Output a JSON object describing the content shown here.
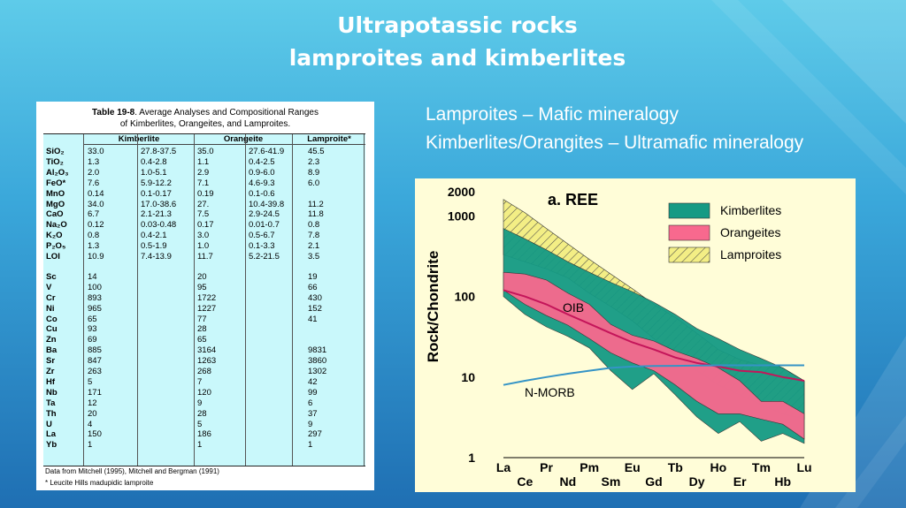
{
  "slide": {
    "title_line1": "Ultrapotassic rocks",
    "title_line2": "lamproites and kimberlites",
    "bullet1": "Lamproites – Mafic mineralogy",
    "bullet2": "Kimberlites/Orangites – Ultramafic mineralogy"
  },
  "table": {
    "caption_bold": "Table 19-8",
    "caption_rest": ". Average Analyses and Compositional Ranges",
    "caption_line2": "of Kimberlites, Orangeites, and Lamproites.",
    "groups": [
      "Kimberlite",
      "Orangeite",
      "Lamproite*"
    ],
    "rows": [
      {
        "label": "SiO₂",
        "v": [
          "33.0",
          "27.8-37.5",
          "35.0",
          "27.6-41.9",
          "45.5"
        ]
      },
      {
        "label": "TiO₂",
        "v": [
          "1.3",
          "0.4-2.8",
          "1.1",
          "0.4-2.5",
          "2.3"
        ]
      },
      {
        "label": "Al₂O₃",
        "v": [
          "2.0",
          "1.0-5.1",
          "2.9",
          "0.9-6.0",
          "8.9"
        ]
      },
      {
        "label": "FeO*",
        "v": [
          "7.6",
          "5.9-12.2",
          "7.1",
          "4.6-9.3",
          "6.0"
        ]
      },
      {
        "label": "MnO",
        "v": [
          "0.14",
          "0.1-0.17",
          "0.19",
          "0.1-0.6",
          ""
        ]
      },
      {
        "label": "MgO",
        "v": [
          "34.0",
          "17.0-38.6",
          "27.",
          "10.4-39.8",
          "11.2"
        ]
      },
      {
        "label": "CaO",
        "v": [
          "6.7",
          "2.1-21.3",
          "7.5",
          "2.9-24.5",
          "11.8"
        ]
      },
      {
        "label": "Na₂O",
        "v": [
          "0.12",
          "0.03-0.48",
          "0.17",
          "0.01-0.7",
          "0.8"
        ]
      },
      {
        "label": "K₂O",
        "v": [
          "0.8",
          "0.4-2.1",
          "3.0",
          "0.5-6.7",
          "7.8"
        ]
      },
      {
        "label": "P₂O₅",
        "v": [
          "1.3",
          "0.5-1.9",
          "1.0",
          "0.1-3.3",
          "2.1"
        ]
      },
      {
        "label": "LOI",
        "v": [
          "10.9",
          "7.4-13.9",
          "11.7",
          "5.2-21.5",
          "3.5"
        ]
      },
      {
        "label": "Sc",
        "v": [
          "14",
          "",
          "20",
          "",
          "19"
        ]
      },
      {
        "label": "V",
        "v": [
          "100",
          "",
          "95",
          "",
          "66"
        ]
      },
      {
        "label": "Cr",
        "v": [
          "893",
          "",
          "1722",
          "",
          "430"
        ]
      },
      {
        "label": "Ni",
        "v": [
          "965",
          "",
          "1227",
          "",
          "152"
        ]
      },
      {
        "label": "Co",
        "v": [
          "65",
          "",
          "77",
          "",
          "41"
        ]
      },
      {
        "label": "Cu",
        "v": [
          "93",
          "",
          "28",
          "",
          ""
        ]
      },
      {
        "label": "Zn",
        "v": [
          "69",
          "",
          "65",
          "",
          ""
        ]
      },
      {
        "label": "Ba",
        "v": [
          "885",
          "",
          "3164",
          "",
          "9831"
        ]
      },
      {
        "label": "Sr",
        "v": [
          "847",
          "",
          "1263",
          "",
          "3860"
        ]
      },
      {
        "label": "Zr",
        "v": [
          "263",
          "",
          "268",
          "",
          "1302"
        ]
      },
      {
        "label": "Hf",
        "v": [
          "5",
          "",
          "7",
          "",
          "42"
        ]
      },
      {
        "label": "Nb",
        "v": [
          "171",
          "",
          "120",
          "",
          "99"
        ]
      },
      {
        "label": "Ta",
        "v": [
          "12",
          "",
          "9",
          "",
          "6"
        ]
      },
      {
        "label": "Th",
        "v": [
          "20",
          "",
          "28",
          "",
          "37"
        ]
      },
      {
        "label": "U",
        "v": [
          "4",
          "",
          "5",
          "",
          "9"
        ]
      },
      {
        "label": "La",
        "v": [
          "150",
          "",
          "186",
          "",
          "297"
        ]
      },
      {
        "label": "Yb",
        "v": [
          "1",
          "",
          "1",
          "",
          "1"
        ]
      }
    ],
    "note1": "Data from Mitchell (1995), Mitchell and Bergman (1991)",
    "note2": "* Leucite Hills madupidic lamproite"
  },
  "chart_data": {
    "type": "line",
    "title": "a. REE",
    "ylabel": "Rock/Chondrite",
    "yscale": "log",
    "ylim": [
      1,
      2000
    ],
    "ytick_labels": [
      "2000",
      "1000",
      "100",
      "10",
      "1"
    ],
    "x_top_row": [
      "La",
      "Pr",
      "Pm",
      "Eu",
      "Tb",
      "Ho",
      "Tm",
      "Lu"
    ],
    "x_bottom_row": [
      "Ce",
      "Nd",
      "Sm",
      "Gd",
      "Dy",
      "Er",
      "Hb"
    ],
    "x": [
      "La",
      "Ce",
      "Pr",
      "Nd",
      "Pm",
      "Sm",
      "Eu",
      "Gd",
      "Tb",
      "Dy",
      "Ho",
      "Er",
      "Tm",
      "Hb",
      "Lu"
    ],
    "legend": [
      "Kimberlites",
      "Orangeites",
      "Lamproites"
    ],
    "colors": {
      "Kimberlites": "#159a84",
      "Orangeites": "#f8698e",
      "Lamproites": "#f3ee85",
      "OIB": "#c4155a",
      "N-MORB": "#3594c6"
    },
    "series": [
      {
        "name": "OIB",
        "values": [
          120,
          100,
          80,
          60,
          46,
          35,
          27,
          22,
          17.5,
          15,
          13.5,
          12,
          11.5,
          10,
          9
        ]
      },
      {
        "name": "N-MORB",
        "values": [
          8,
          9,
          10,
          11,
          12,
          13,
          13.5,
          13.7,
          13.8,
          13.9,
          14,
          14,
          14,
          14,
          14
        ]
      }
    ],
    "fields": [
      {
        "name": "Lamproites",
        "upper": [
          1600,
          1100,
          700,
          450,
          290,
          190,
          125,
          80,
          55,
          35,
          22,
          16.5,
          14,
          13,
          9
        ],
        "lower": [
          330,
          270,
          220,
          170,
          110,
          75,
          50,
          30,
          18.5,
          12,
          8,
          6,
          4.5,
          3.5,
          3
        ]
      },
      {
        "name": "Kimberlites",
        "upper": [
          700,
          520,
          380,
          270,
          200,
          150,
          115,
          85,
          60,
          40,
          30,
          22,
          17,
          13,
          9
        ],
        "lower": [
          100,
          60,
          42,
          32,
          23,
          12,
          7,
          11,
          6,
          3.2,
          2,
          2.8,
          1.6,
          2,
          1.5
        ]
      },
      {
        "name": "Orangeites",
        "upper": [
          200,
          190,
          160,
          110,
          80,
          45,
          33,
          28,
          21,
          17,
          13,
          9,
          5,
          5,
          3.5
        ],
        "lower": [
          120,
          80,
          58,
          44,
          30,
          20,
          15,
          12,
          8,
          5,
          3.5,
          3.5,
          3,
          2.6,
          1.7
        ]
      }
    ],
    "annotations": [
      "OIB",
      "N-MORB"
    ]
  }
}
